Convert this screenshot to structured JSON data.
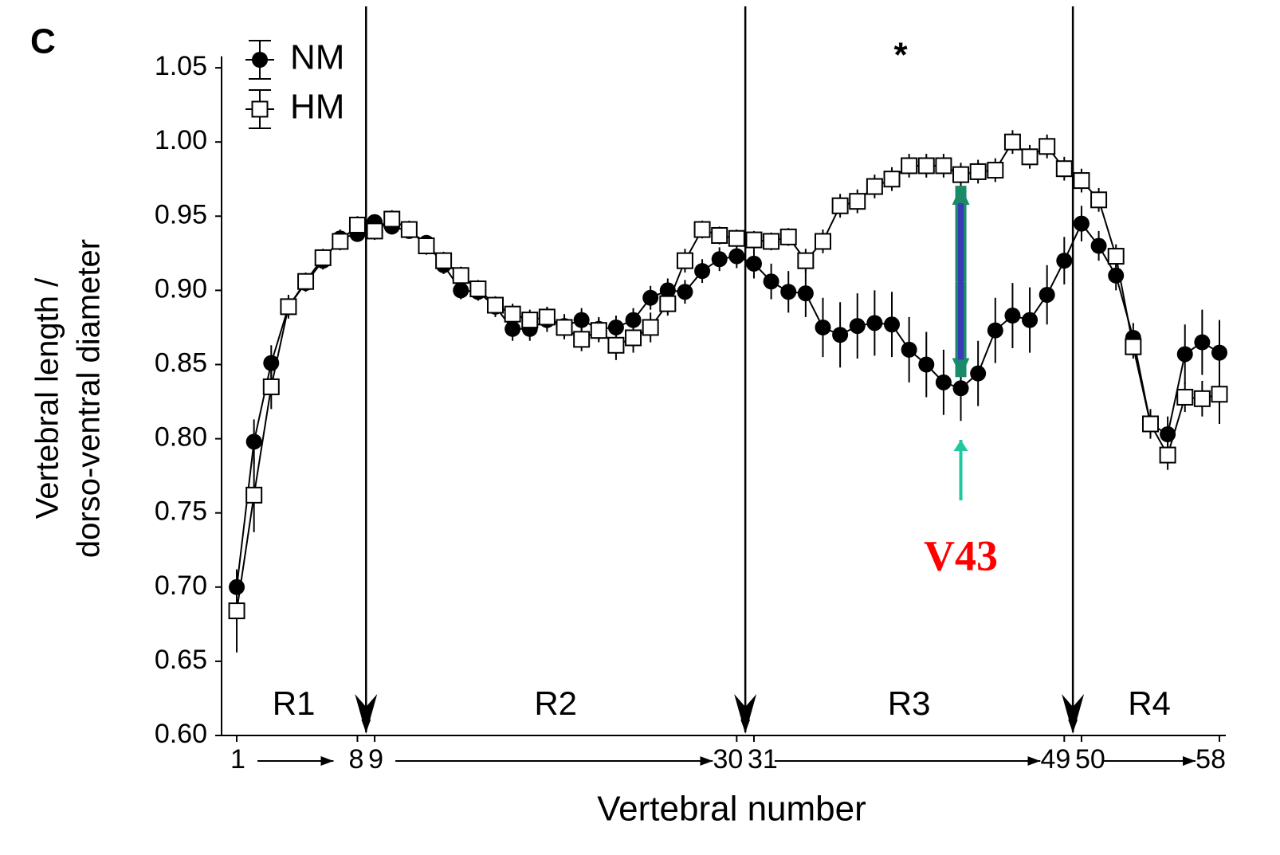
{
  "chart_data": {
    "type": "line",
    "panel_label": "C",
    "ylabel": [
      "Vertebral length /",
      "dorso-ventral diameter"
    ],
    "xlabel": "Vertebral number",
    "x": [
      1,
      2,
      3,
      4,
      5,
      6,
      7,
      8,
      9,
      10,
      11,
      12,
      13,
      14,
      15,
      16,
      17,
      18,
      19,
      20,
      21,
      22,
      23,
      24,
      25,
      26,
      27,
      28,
      29,
      30,
      31,
      32,
      33,
      34,
      35,
      36,
      37,
      38,
      39,
      40,
      41,
      42,
      43,
      44,
      45,
      46,
      47,
      48,
      49,
      50,
      51,
      52,
      53,
      54,
      55,
      56,
      57,
      58
    ],
    "series": [
      {
        "name": "NM",
        "color": "#000000",
        "marker": "circle",
        "values": [
          0.7,
          0.798,
          0.851,
          0.889,
          0.905,
          0.92,
          0.935,
          0.938,
          0.946,
          0.943,
          0.94,
          0.932,
          0.917,
          0.9,
          0.899,
          0.889,
          0.874,
          0.874,
          0.88,
          0.876,
          0.88,
          0.874,
          0.875,
          0.88,
          0.895,
          0.9,
          0.899,
          0.913,
          0.921,
          0.923,
          0.918,
          0.906,
          0.899,
          0.898,
          0.875,
          0.87,
          0.876,
          0.878,
          0.877,
          0.86,
          0.85,
          0.838,
          0.834,
          0.844,
          0.873,
          0.883,
          0.88,
          0.897,
          0.92,
          0.945,
          0.93,
          0.91,
          0.868,
          0.81,
          0.803,
          0.857,
          0.865,
          0.858
        ],
        "errors": [
          0.01,
          0.015,
          0.012,
          0.008,
          0.006,
          0.006,
          0.006,
          0.005,
          0.005,
          0.005,
          0.005,
          0.005,
          0.006,
          0.006,
          0.006,
          0.007,
          0.008,
          0.008,
          0.008,
          0.008,
          0.008,
          0.008,
          0.008,
          0.008,
          0.008,
          0.008,
          0.008,
          0.008,
          0.008,
          0.008,
          0.01,
          0.012,
          0.014,
          0.016,
          0.02,
          0.022,
          0.022,
          0.022,
          0.022,
          0.022,
          0.022,
          0.022,
          0.022,
          0.022,
          0.022,
          0.022,
          0.022,
          0.02,
          0.016,
          0.012,
          0.01,
          0.01,
          0.01,
          0.01,
          0.012,
          0.02,
          0.022,
          0.022
        ]
      },
      {
        "name": "HM",
        "color": "#000000",
        "marker": "square",
        "values": [
          0.684,
          0.762,
          0.835,
          0.889,
          0.906,
          0.922,
          0.933,
          0.944,
          0.94,
          0.948,
          0.941,
          0.93,
          0.92,
          0.91,
          0.901,
          0.89,
          0.884,
          0.88,
          0.882,
          0.875,
          0.867,
          0.873,
          0.863,
          0.868,
          0.875,
          0.891,
          0.92,
          0.941,
          0.937,
          0.935,
          0.934,
          0.933,
          0.936,
          0.92,
          0.933,
          0.957,
          0.96,
          0.97,
          0.975,
          0.984,
          0.984,
          0.984,
          0.978,
          0.98,
          0.981,
          1.0,
          0.99,
          0.997,
          0.982,
          0.974,
          0.961,
          0.923,
          0.862,
          0.81,
          0.789,
          0.828,
          0.827,
          0.83
        ],
        "errors": [
          0.028,
          0.025,
          0.015,
          0.006,
          0.006,
          0.006,
          0.006,
          0.006,
          0.006,
          0.006,
          0.006,
          0.006,
          0.006,
          0.006,
          0.006,
          0.006,
          0.007,
          0.007,
          0.007,
          0.008,
          0.008,
          0.008,
          0.01,
          0.01,
          0.01,
          0.008,
          0.008,
          0.006,
          0.006,
          0.006,
          0.006,
          0.006,
          0.006,
          0.008,
          0.008,
          0.008,
          0.008,
          0.008,
          0.008,
          0.008,
          0.008,
          0.008,
          0.008,
          0.008,
          0.008,
          0.008,
          0.008,
          0.008,
          0.008,
          0.008,
          0.008,
          0.008,
          0.008,
          0.008,
          0.01,
          0.01,
          0.012,
          0.02
        ]
      }
    ],
    "xlim": [
      0.12,
      58.37
    ],
    "xticks": [
      1,
      8,
      9,
      30,
      31,
      49,
      50,
      58
    ],
    "ylim": [
      0.6,
      1.09
    ],
    "yticks": [
      {
        "value": 0.6,
        "label": "0.60"
      },
      0.65,
      {
        "value": 0.7,
        "label": "0.70"
      },
      0.75,
      {
        "value": 0.8,
        "label": "0.80"
      },
      0.85,
      {
        "value": 0.9,
        "label": "0.90"
      },
      0.95,
      {
        "value": 1,
        "label": "1.00"
      },
      1.05
    ],
    "region_boundaries": [
      8.5,
      30.5,
      49.5
    ],
    "regions": [
      "R1",
      "R2",
      "R3",
      "R4"
    ],
    "annotations": {
      "significance": "*",
      "highlight": "V43",
      "highlight_x": 43,
      "highlight_color": "#ff0000"
    },
    "legend": "upper left"
  }
}
